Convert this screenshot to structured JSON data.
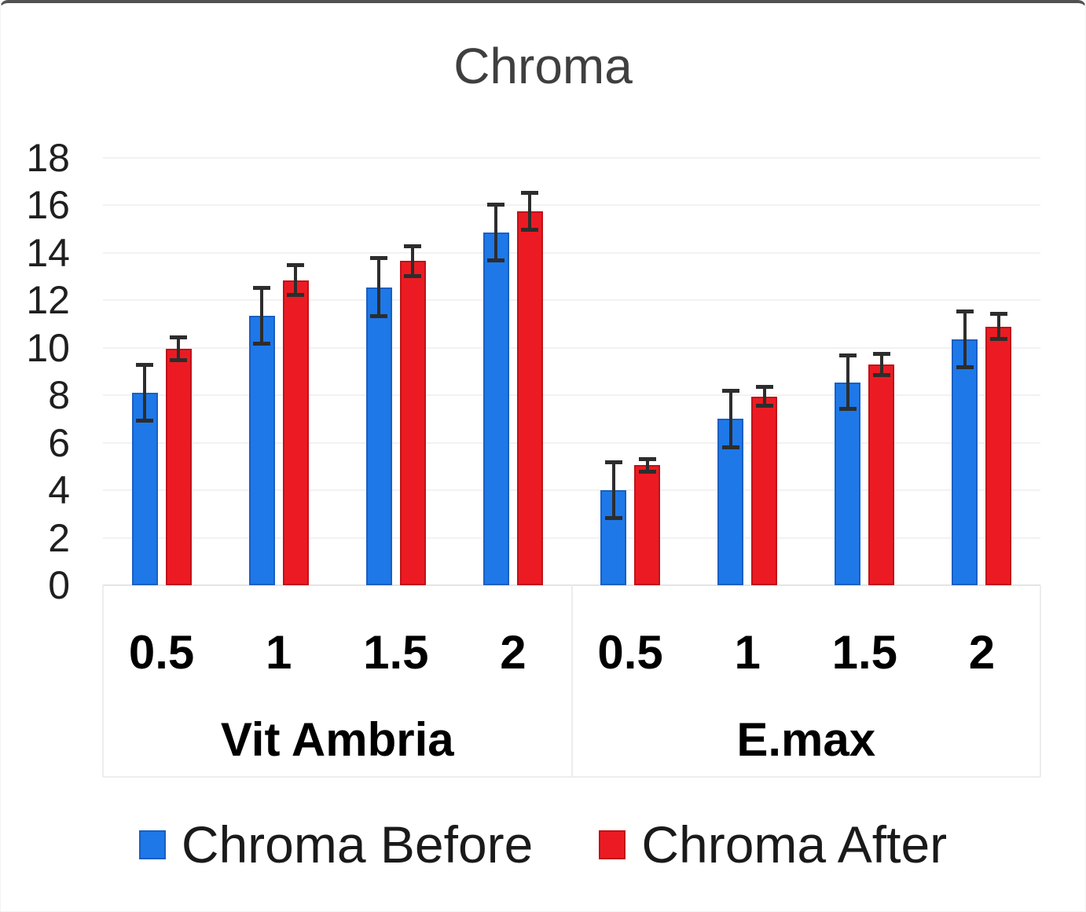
{
  "chart_data": {
    "type": "bar",
    "title": "Chroma",
    "grid": true,
    "error_bars": true,
    "legend_position": "bottom",
    "ylim": [
      0,
      18
    ],
    "ytick_step": 2,
    "yticks": [
      "0",
      "2",
      "4",
      "6",
      "8",
      "10",
      "12",
      "14",
      "16",
      "18"
    ],
    "groups": [
      {
        "label": "Vit Ambria",
        "categories": [
          "0.5",
          "1",
          "1.5",
          "2"
        ]
      },
      {
        "label": "E.max",
        "categories": [
          "0.5",
          "1",
          "1.5",
          "2"
        ]
      }
    ],
    "series": [
      {
        "name": "Chroma Before",
        "color": "#1E78E8",
        "border_color": "#1A5FC2",
        "values": [
          [
            8.1,
            11.35,
            12.55,
            14.85
          ],
          [
            4.0,
            7.0,
            8.55,
            10.35
          ]
        ],
        "errors": [
          [
            1.2,
            1.2,
            1.25,
            1.2
          ],
          [
            1.2,
            1.2,
            1.15,
            1.2
          ]
        ]
      },
      {
        "name": "Chroma After",
        "color": "#EC1B23",
        "border_color": "#C01219",
        "values": [
          [
            9.95,
            12.85,
            13.65,
            15.75
          ],
          [
            5.05,
            7.95,
            9.3,
            10.9
          ]
        ],
        "errors": [
          [
            0.5,
            0.65,
            0.65,
            0.78
          ],
          [
            0.28,
            0.42,
            0.47,
            0.55
          ]
        ]
      }
    ],
    "error_bar_color": "#2D2D2D"
  }
}
